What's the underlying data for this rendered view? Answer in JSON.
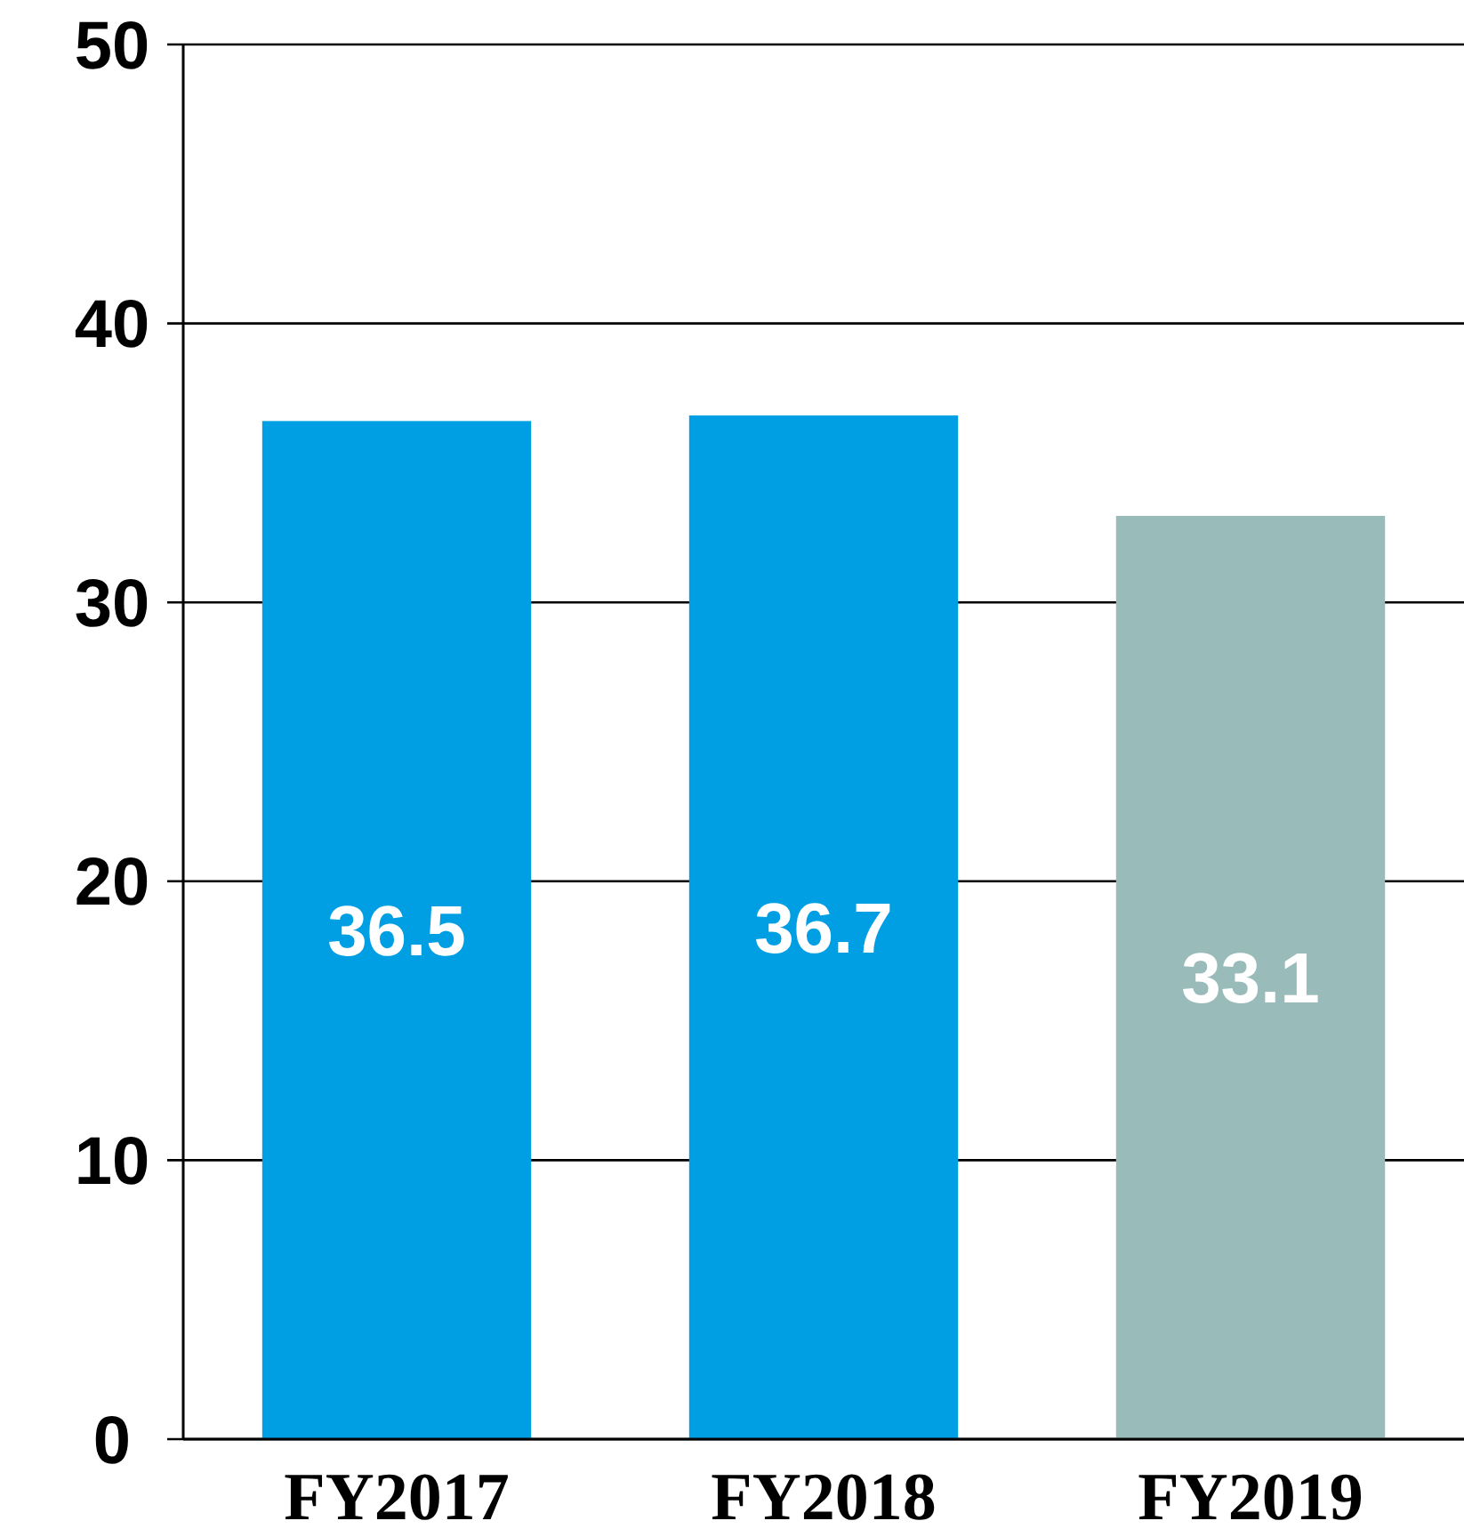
{
  "chart_data": {
    "type": "bar",
    "categories": [
      "FY2017",
      "FY2018",
      "FY2019"
    ],
    "values": [
      36.5,
      36.7,
      33.1
    ],
    "colors": [
      "#009fe3",
      "#009fe3",
      "#99bbba"
    ],
    "ylim": [
      0,
      50
    ],
    "yticks": [
      0,
      10,
      20,
      30,
      40,
      50
    ],
    "grid": "y",
    "data_labels": true
  }
}
